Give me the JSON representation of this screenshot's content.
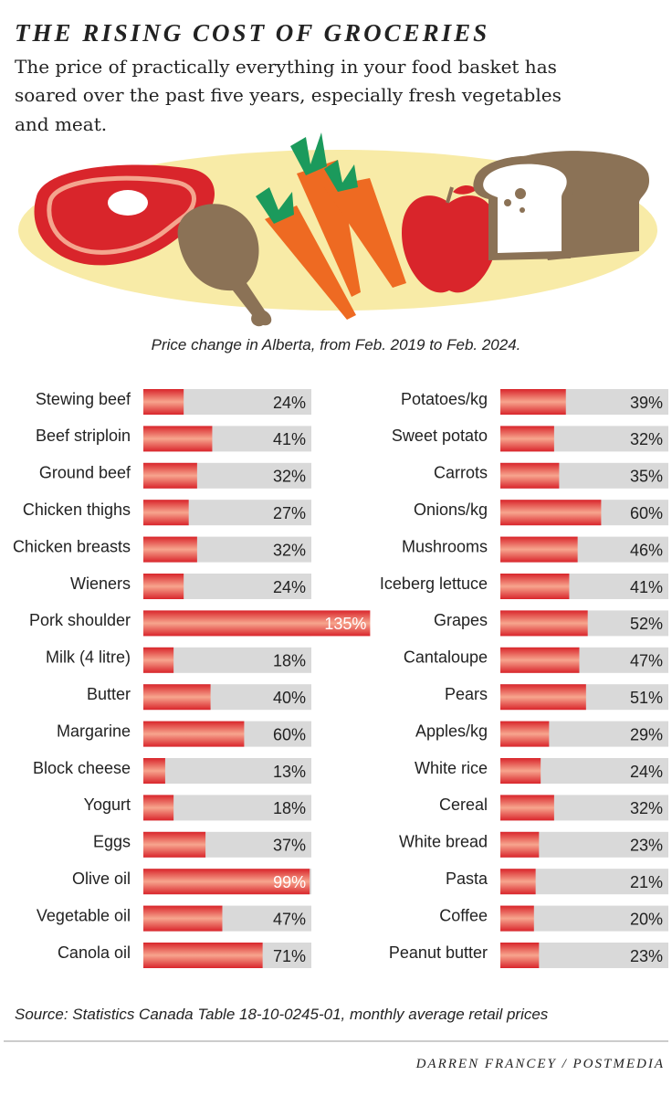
{
  "title": "THE RISING COST OF GROCERIES",
  "subtitle": [
    "The price of practically everything in your food basket has",
    "soared over the past five years, especially fresh vegetables",
    "and meat."
  ],
  "caption": "Price change in Alberta, from Feb. 2019 to Feb. 2024.",
  "source": "Source: Statistics Canada Table 18-10-0245-01, monthly average retail prices",
  "credit": "DARREN FRANCEY / POSTMEDIA",
  "chart_data": [
    {
      "type": "bar",
      "orientation": "horizontal",
      "color": "#d9252b",
      "track_color": "#d9d9d9",
      "categories": [
        "Stewing beef",
        "Beef striploin",
        "Ground beef",
        "Chicken thighs",
        "Chicken breasts",
        "Wieners",
        "Pork shoulder",
        "Milk (4 litre)",
        "Butter",
        "Margarine",
        "Block cheese",
        "Yogurt",
        "Eggs",
        "Olive oil",
        "Vegetable oil",
        "Canola oil"
      ],
      "values": [
        24,
        41,
        32,
        27,
        32,
        24,
        135,
        18,
        40,
        60,
        13,
        18,
        37,
        99,
        47,
        71
      ],
      "value_labels": [
        "24%",
        "41%",
        "32%",
        "27%",
        "32%",
        "24%",
        "135%",
        "18%",
        "40%",
        "60%",
        "13%",
        "18%",
        "37%",
        "99%",
        "47%",
        "71%"
      ],
      "xlim": [
        0,
        100
      ]
    },
    {
      "type": "bar",
      "orientation": "horizontal",
      "color": "#d9252b",
      "track_color": "#d9d9d9",
      "categories": [
        "Potatoes/kg",
        "Sweet potato",
        "Carrots",
        "Onions/kg",
        "Mushrooms",
        "Iceberg lettuce",
        "Grapes",
        "Cantaloupe",
        "Pears",
        "Apples/kg",
        "White rice",
        "Cereal",
        "White bread",
        "Pasta",
        "Coffee",
        "Peanut butter"
      ],
      "values": [
        39,
        32,
        35,
        60,
        46,
        41,
        52,
        47,
        51,
        29,
        24,
        32,
        23,
        21,
        20,
        23
      ],
      "value_labels": [
        "39%",
        "32%",
        "35%",
        "60%",
        "46%",
        "41%",
        "52%",
        "47%",
        "51%",
        "29%",
        "24%",
        "32%",
        "23%",
        "21%",
        "20%",
        "23%"
      ],
      "xlim": [
        0,
        100
      ]
    }
  ]
}
